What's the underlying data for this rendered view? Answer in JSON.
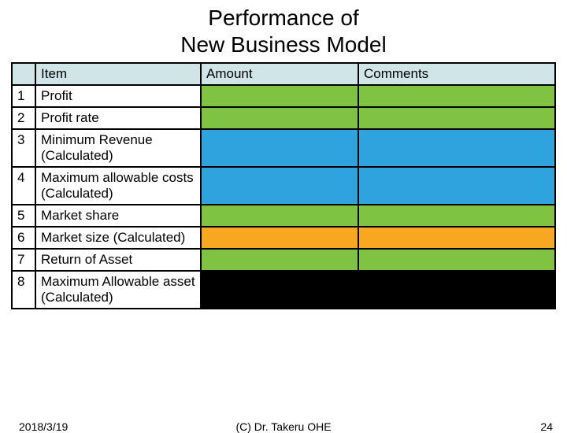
{
  "title_line1": "Performance of",
  "title_line2": "New Business Model",
  "colors": {
    "header_bg": "#cfe5e8",
    "green": "#80c242",
    "blue": "#2ea3dd",
    "orange": "#f7a820",
    "black_bg": "#000000",
    "black_text": "#ffffff",
    "border": "#000000"
  },
  "table": {
    "headers": [
      "",
      "Item",
      "Amount",
      "Comments"
    ],
    "rows": [
      {
        "num": "1",
        "item": "Profit",
        "amount": "",
        "comments": "",
        "colorKey": "green"
      },
      {
        "num": "2",
        "item": "Profit rate",
        "amount": "",
        "comments": "",
        "colorKey": "green"
      },
      {
        "num": "3",
        "item": "Minimum Revenue (Calculated)",
        "amount": "",
        "comments": "",
        "colorKey": "blue"
      },
      {
        "num": "4",
        "item": "Maximum allowable costs (Calculated)",
        "amount": "",
        "comments": "",
        "colorKey": "blue"
      },
      {
        "num": "5",
        "item": "Market share",
        "amount": "",
        "comments": "",
        "colorKey": "green"
      },
      {
        "num": "6",
        "item": "Market size (Calculated)",
        "amount": "",
        "comments": "",
        "colorKey": "orange"
      },
      {
        "num": "7",
        "item": "Return of Asset",
        "amount": "",
        "comments": "",
        "colorKey": "green"
      },
      {
        "num": "8",
        "item": "Maximum Allowable asset (Calculated)",
        "amount": "",
        "comments": "",
        "colorKey": "black_bg"
      }
    ]
  },
  "footer": {
    "date": "2018/3/19",
    "copyright": "(C) Dr. Takeru OHE",
    "page": "24"
  }
}
